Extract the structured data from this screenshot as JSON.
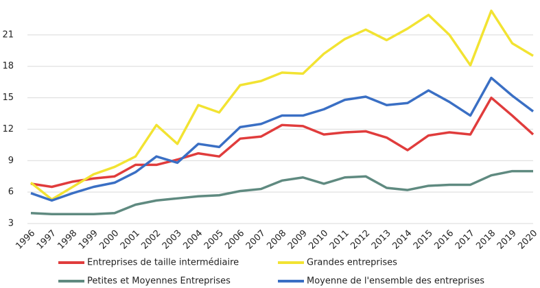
{
  "chart_data": {
    "type": "line",
    "categories": [
      "1996",
      "1997",
      "1998",
      "1999",
      "2000",
      "2001",
      "2002",
      "2003",
      "2004",
      "2005",
      "2006",
      "2007",
      "2008",
      "2009",
      "2010",
      "2011",
      "2012",
      "2013",
      "2014",
      "2015",
      "2016",
      "2017",
      "2018",
      "2019",
      "2020"
    ],
    "series": [
      {
        "name": "Entreprises de taille intermédiaire",
        "color": "#e03c3c",
        "values": [
          6.8,
          6.5,
          7.0,
          7.3,
          7.5,
          8.6,
          8.6,
          9.1,
          9.7,
          9.4,
          11.1,
          11.3,
          12.4,
          12.3,
          11.5,
          11.7,
          11.8,
          11.2,
          10.0,
          11.4,
          11.7,
          11.5,
          15.0,
          13.3,
          11.5
        ]
      },
      {
        "name": "Grandes entreprises",
        "color": "#f2e332",
        "values": [
          6.9,
          5.3,
          6.5,
          7.7,
          8.4,
          9.4,
          12.4,
          10.6,
          14.3,
          13.6,
          16.2,
          16.6,
          17.4,
          17.3,
          19.2,
          20.6,
          21.5,
          20.5,
          21.6,
          22.9,
          21.0,
          18.1,
          23.3,
          20.2,
          19.0
        ]
      },
      {
        "name": "Petites et Moyennes Entreprises",
        "color": "#5f8a80",
        "values": [
          4.0,
          3.9,
          3.9,
          3.9,
          4.0,
          4.8,
          5.2,
          5.4,
          5.6,
          5.7,
          6.1,
          6.3,
          7.1,
          7.4,
          6.8,
          7.4,
          7.5,
          6.4,
          6.2,
          6.6,
          6.7,
          6.7,
          7.6,
          8.0,
          8.0
        ]
      },
      {
        "name": "Moyenne de l'ensemble des entreprises",
        "color": "#3a6fc4",
        "values": [
          5.9,
          5.2,
          5.9,
          6.5,
          6.9,
          7.9,
          9.4,
          8.8,
          10.6,
          10.3,
          12.2,
          12.5,
          13.3,
          13.3,
          13.9,
          14.8,
          15.1,
          14.3,
          14.5,
          15.7,
          14.6,
          13.3,
          16.9,
          15.2,
          13.7
        ]
      }
    ],
    "ylim": [
      3,
      24
    ],
    "yticks": [
      3,
      6,
      9,
      12,
      15,
      18,
      21
    ],
    "grid": true
  }
}
